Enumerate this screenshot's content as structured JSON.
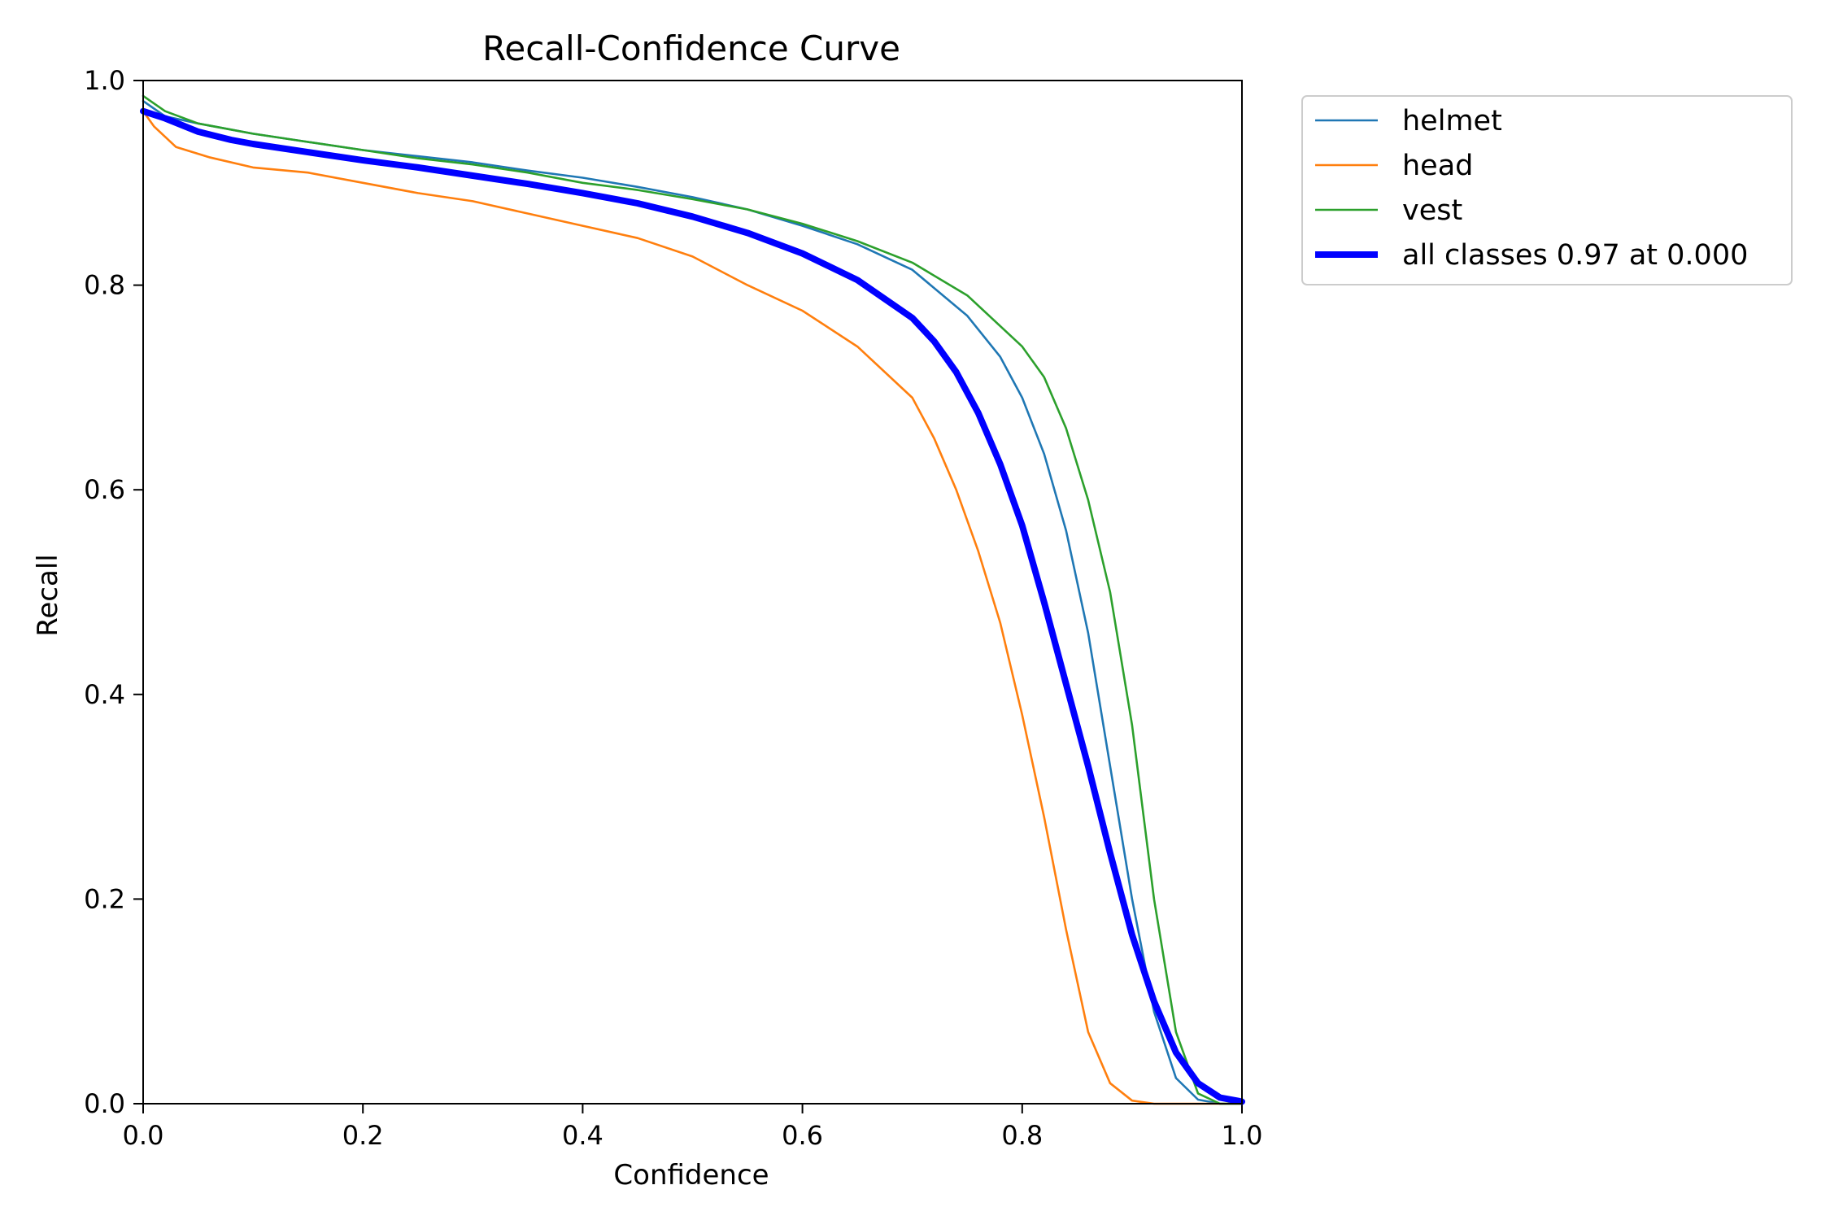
{
  "chart_data": {
    "type": "line",
    "title": "Recall-Confidence Curve",
    "xlabel": "Confidence",
    "ylabel": "Recall",
    "xlim": [
      0.0,
      1.0
    ],
    "ylim": [
      0.0,
      1.0
    ],
    "xticks": [
      "0.0",
      "0.2",
      "0.4",
      "0.6",
      "0.8",
      "1.0"
    ],
    "yticks": [
      "0.0",
      "0.2",
      "0.4",
      "0.6",
      "0.8",
      "1.0"
    ],
    "grid": false,
    "legend_position": "outside-top-right",
    "series": [
      {
        "name": "helmet",
        "color": "#1f77b4",
        "width": "thin",
        "points": [
          [
            0.0,
            0.98
          ],
          [
            0.02,
            0.965
          ],
          [
            0.05,
            0.958
          ],
          [
            0.1,
            0.948
          ],
          [
            0.15,
            0.94
          ],
          [
            0.2,
            0.932
          ],
          [
            0.25,
            0.926
          ],
          [
            0.3,
            0.92
          ],
          [
            0.35,
            0.912
          ],
          [
            0.4,
            0.905
          ],
          [
            0.45,
            0.896
          ],
          [
            0.5,
            0.886
          ],
          [
            0.55,
            0.874
          ],
          [
            0.6,
            0.858
          ],
          [
            0.65,
            0.84
          ],
          [
            0.7,
            0.815
          ],
          [
            0.75,
            0.77
          ],
          [
            0.78,
            0.73
          ],
          [
            0.8,
            0.69
          ],
          [
            0.82,
            0.635
          ],
          [
            0.84,
            0.56
          ],
          [
            0.86,
            0.46
          ],
          [
            0.88,
            0.33
          ],
          [
            0.9,
            0.2
          ],
          [
            0.92,
            0.09
          ],
          [
            0.94,
            0.025
          ],
          [
            0.96,
            0.004
          ],
          [
            0.98,
            0.0
          ],
          [
            1.0,
            0.0
          ]
        ]
      },
      {
        "name": "head",
        "color": "#ff7f0e",
        "width": "thin",
        "points": [
          [
            0.0,
            0.97
          ],
          [
            0.01,
            0.955
          ],
          [
            0.03,
            0.935
          ],
          [
            0.06,
            0.925
          ],
          [
            0.1,
            0.915
          ],
          [
            0.15,
            0.91
          ],
          [
            0.2,
            0.9
          ],
          [
            0.25,
            0.89
          ],
          [
            0.3,
            0.882
          ],
          [
            0.35,
            0.87
          ],
          [
            0.4,
            0.858
          ],
          [
            0.45,
            0.846
          ],
          [
            0.5,
            0.828
          ],
          [
            0.55,
            0.8
          ],
          [
            0.6,
            0.775
          ],
          [
            0.65,
            0.74
          ],
          [
            0.7,
            0.69
          ],
          [
            0.72,
            0.65
          ],
          [
            0.74,
            0.6
          ],
          [
            0.76,
            0.54
          ],
          [
            0.78,
            0.47
          ],
          [
            0.8,
            0.38
          ],
          [
            0.82,
            0.28
          ],
          [
            0.84,
            0.17
          ],
          [
            0.86,
            0.07
          ],
          [
            0.88,
            0.02
          ],
          [
            0.9,
            0.003
          ],
          [
            0.92,
            0.0
          ],
          [
            1.0,
            0.0
          ]
        ]
      },
      {
        "name": "vest",
        "color": "#2ca02c",
        "width": "thin",
        "points": [
          [
            0.0,
            0.985
          ],
          [
            0.02,
            0.97
          ],
          [
            0.05,
            0.958
          ],
          [
            0.1,
            0.948
          ],
          [
            0.15,
            0.94
          ],
          [
            0.2,
            0.932
          ],
          [
            0.25,
            0.924
          ],
          [
            0.3,
            0.918
          ],
          [
            0.35,
            0.91
          ],
          [
            0.4,
            0.9
          ],
          [
            0.45,
            0.893
          ],
          [
            0.5,
            0.884
          ],
          [
            0.55,
            0.874
          ],
          [
            0.6,
            0.86
          ],
          [
            0.65,
            0.843
          ],
          [
            0.7,
            0.822
          ],
          [
            0.75,
            0.79
          ],
          [
            0.8,
            0.74
          ],
          [
            0.82,
            0.71
          ],
          [
            0.84,
            0.66
          ],
          [
            0.86,
            0.59
          ],
          [
            0.88,
            0.5
          ],
          [
            0.9,
            0.37
          ],
          [
            0.92,
            0.2
          ],
          [
            0.94,
            0.07
          ],
          [
            0.96,
            0.01
          ],
          [
            0.98,
            0.0
          ],
          [
            1.0,
            0.0
          ]
        ]
      },
      {
        "name": "all classes 0.97 at 0.000",
        "color": "#0000ff",
        "width": "thick",
        "points": [
          [
            0.0,
            0.97
          ],
          [
            0.02,
            0.963
          ],
          [
            0.05,
            0.95
          ],
          [
            0.08,
            0.942
          ],
          [
            0.1,
            0.938
          ],
          [
            0.15,
            0.93
          ],
          [
            0.2,
            0.922
          ],
          [
            0.25,
            0.915
          ],
          [
            0.3,
            0.907
          ],
          [
            0.35,
            0.899
          ],
          [
            0.4,
            0.89
          ],
          [
            0.45,
            0.88
          ],
          [
            0.5,
            0.867
          ],
          [
            0.55,
            0.851
          ],
          [
            0.6,
            0.831
          ],
          [
            0.65,
            0.805
          ],
          [
            0.7,
            0.768
          ],
          [
            0.72,
            0.745
          ],
          [
            0.74,
            0.715
          ],
          [
            0.76,
            0.675
          ],
          [
            0.78,
            0.625
          ],
          [
            0.8,
            0.565
          ],
          [
            0.82,
            0.49
          ],
          [
            0.84,
            0.41
          ],
          [
            0.86,
            0.33
          ],
          [
            0.88,
            0.245
          ],
          [
            0.9,
            0.165
          ],
          [
            0.92,
            0.1
          ],
          [
            0.94,
            0.05
          ],
          [
            0.96,
            0.02
          ],
          [
            0.98,
            0.006
          ],
          [
            1.0,
            0.002
          ]
        ]
      }
    ]
  }
}
